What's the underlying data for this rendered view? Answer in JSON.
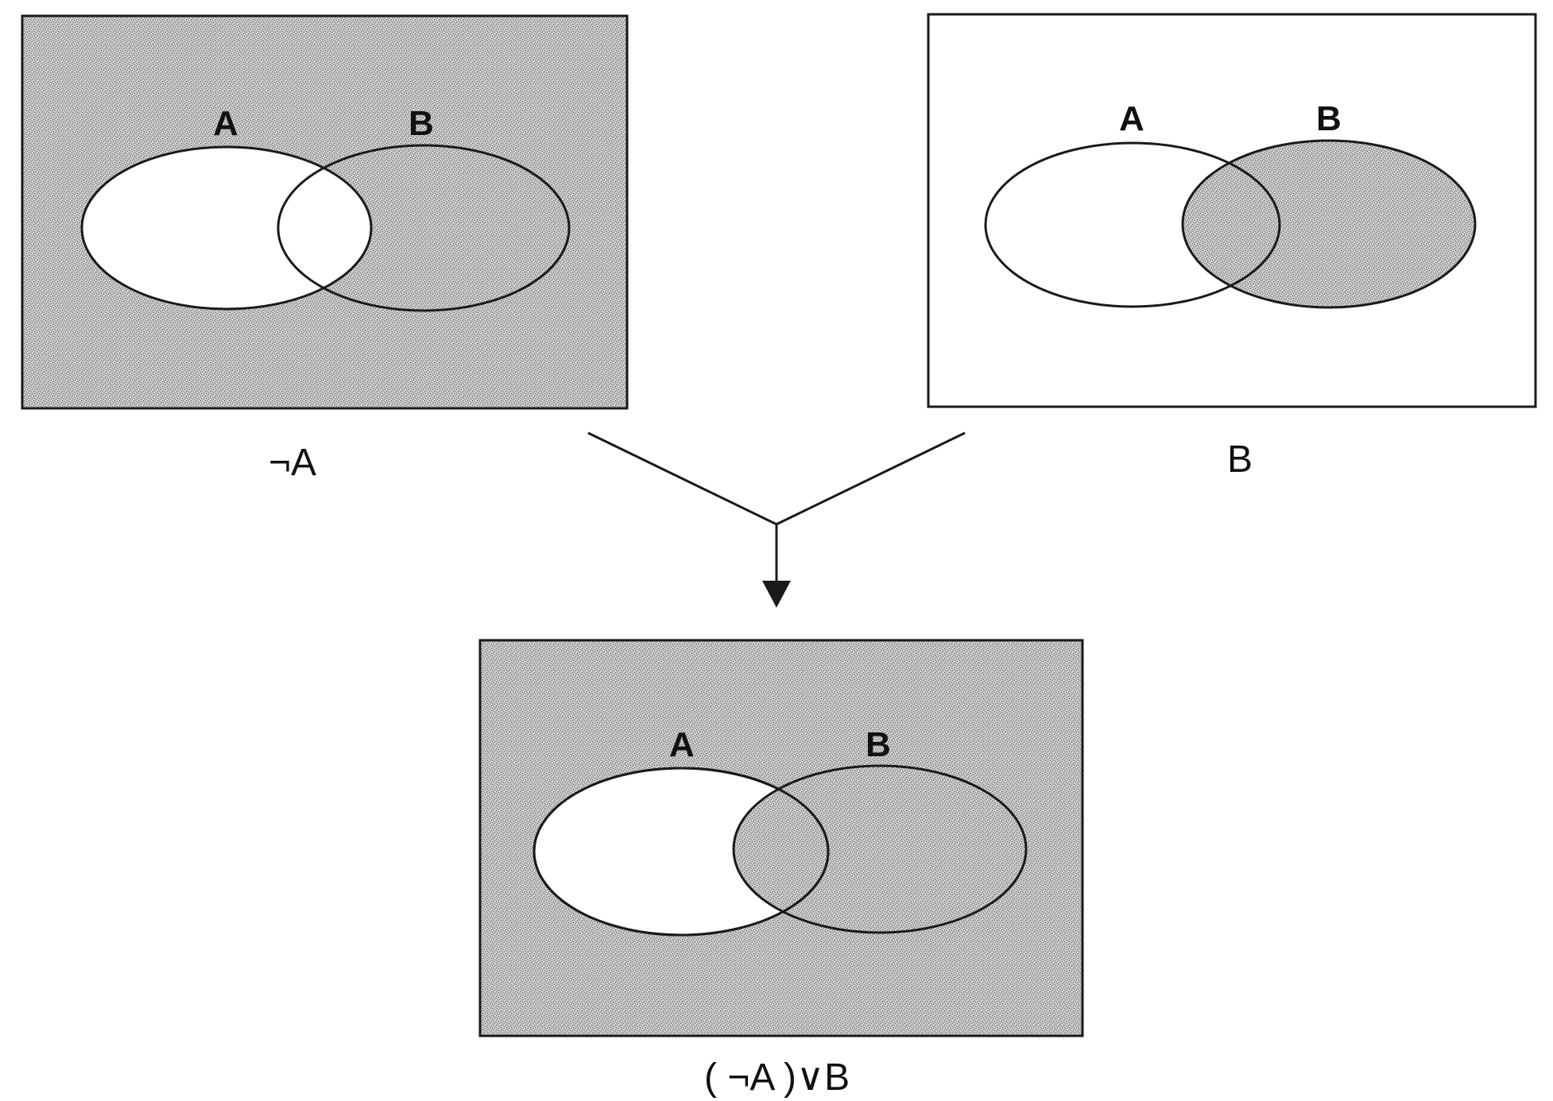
{
  "panels": {
    "not_a": {
      "label_a": "A",
      "label_b": "B",
      "caption": "¬A",
      "shaded": "complement of A"
    },
    "b": {
      "label_a": "A",
      "label_b": "B",
      "caption": "B",
      "shaded": "B"
    },
    "result": {
      "label_a": "A",
      "label_b": "B",
      "caption": "( ¬A )∨B",
      "shaded": "complement of A union B"
    }
  },
  "colors": {
    "stipple_base": "#b9b9b9",
    "outline": "#1a1a1a",
    "background": "#ffffff"
  }
}
